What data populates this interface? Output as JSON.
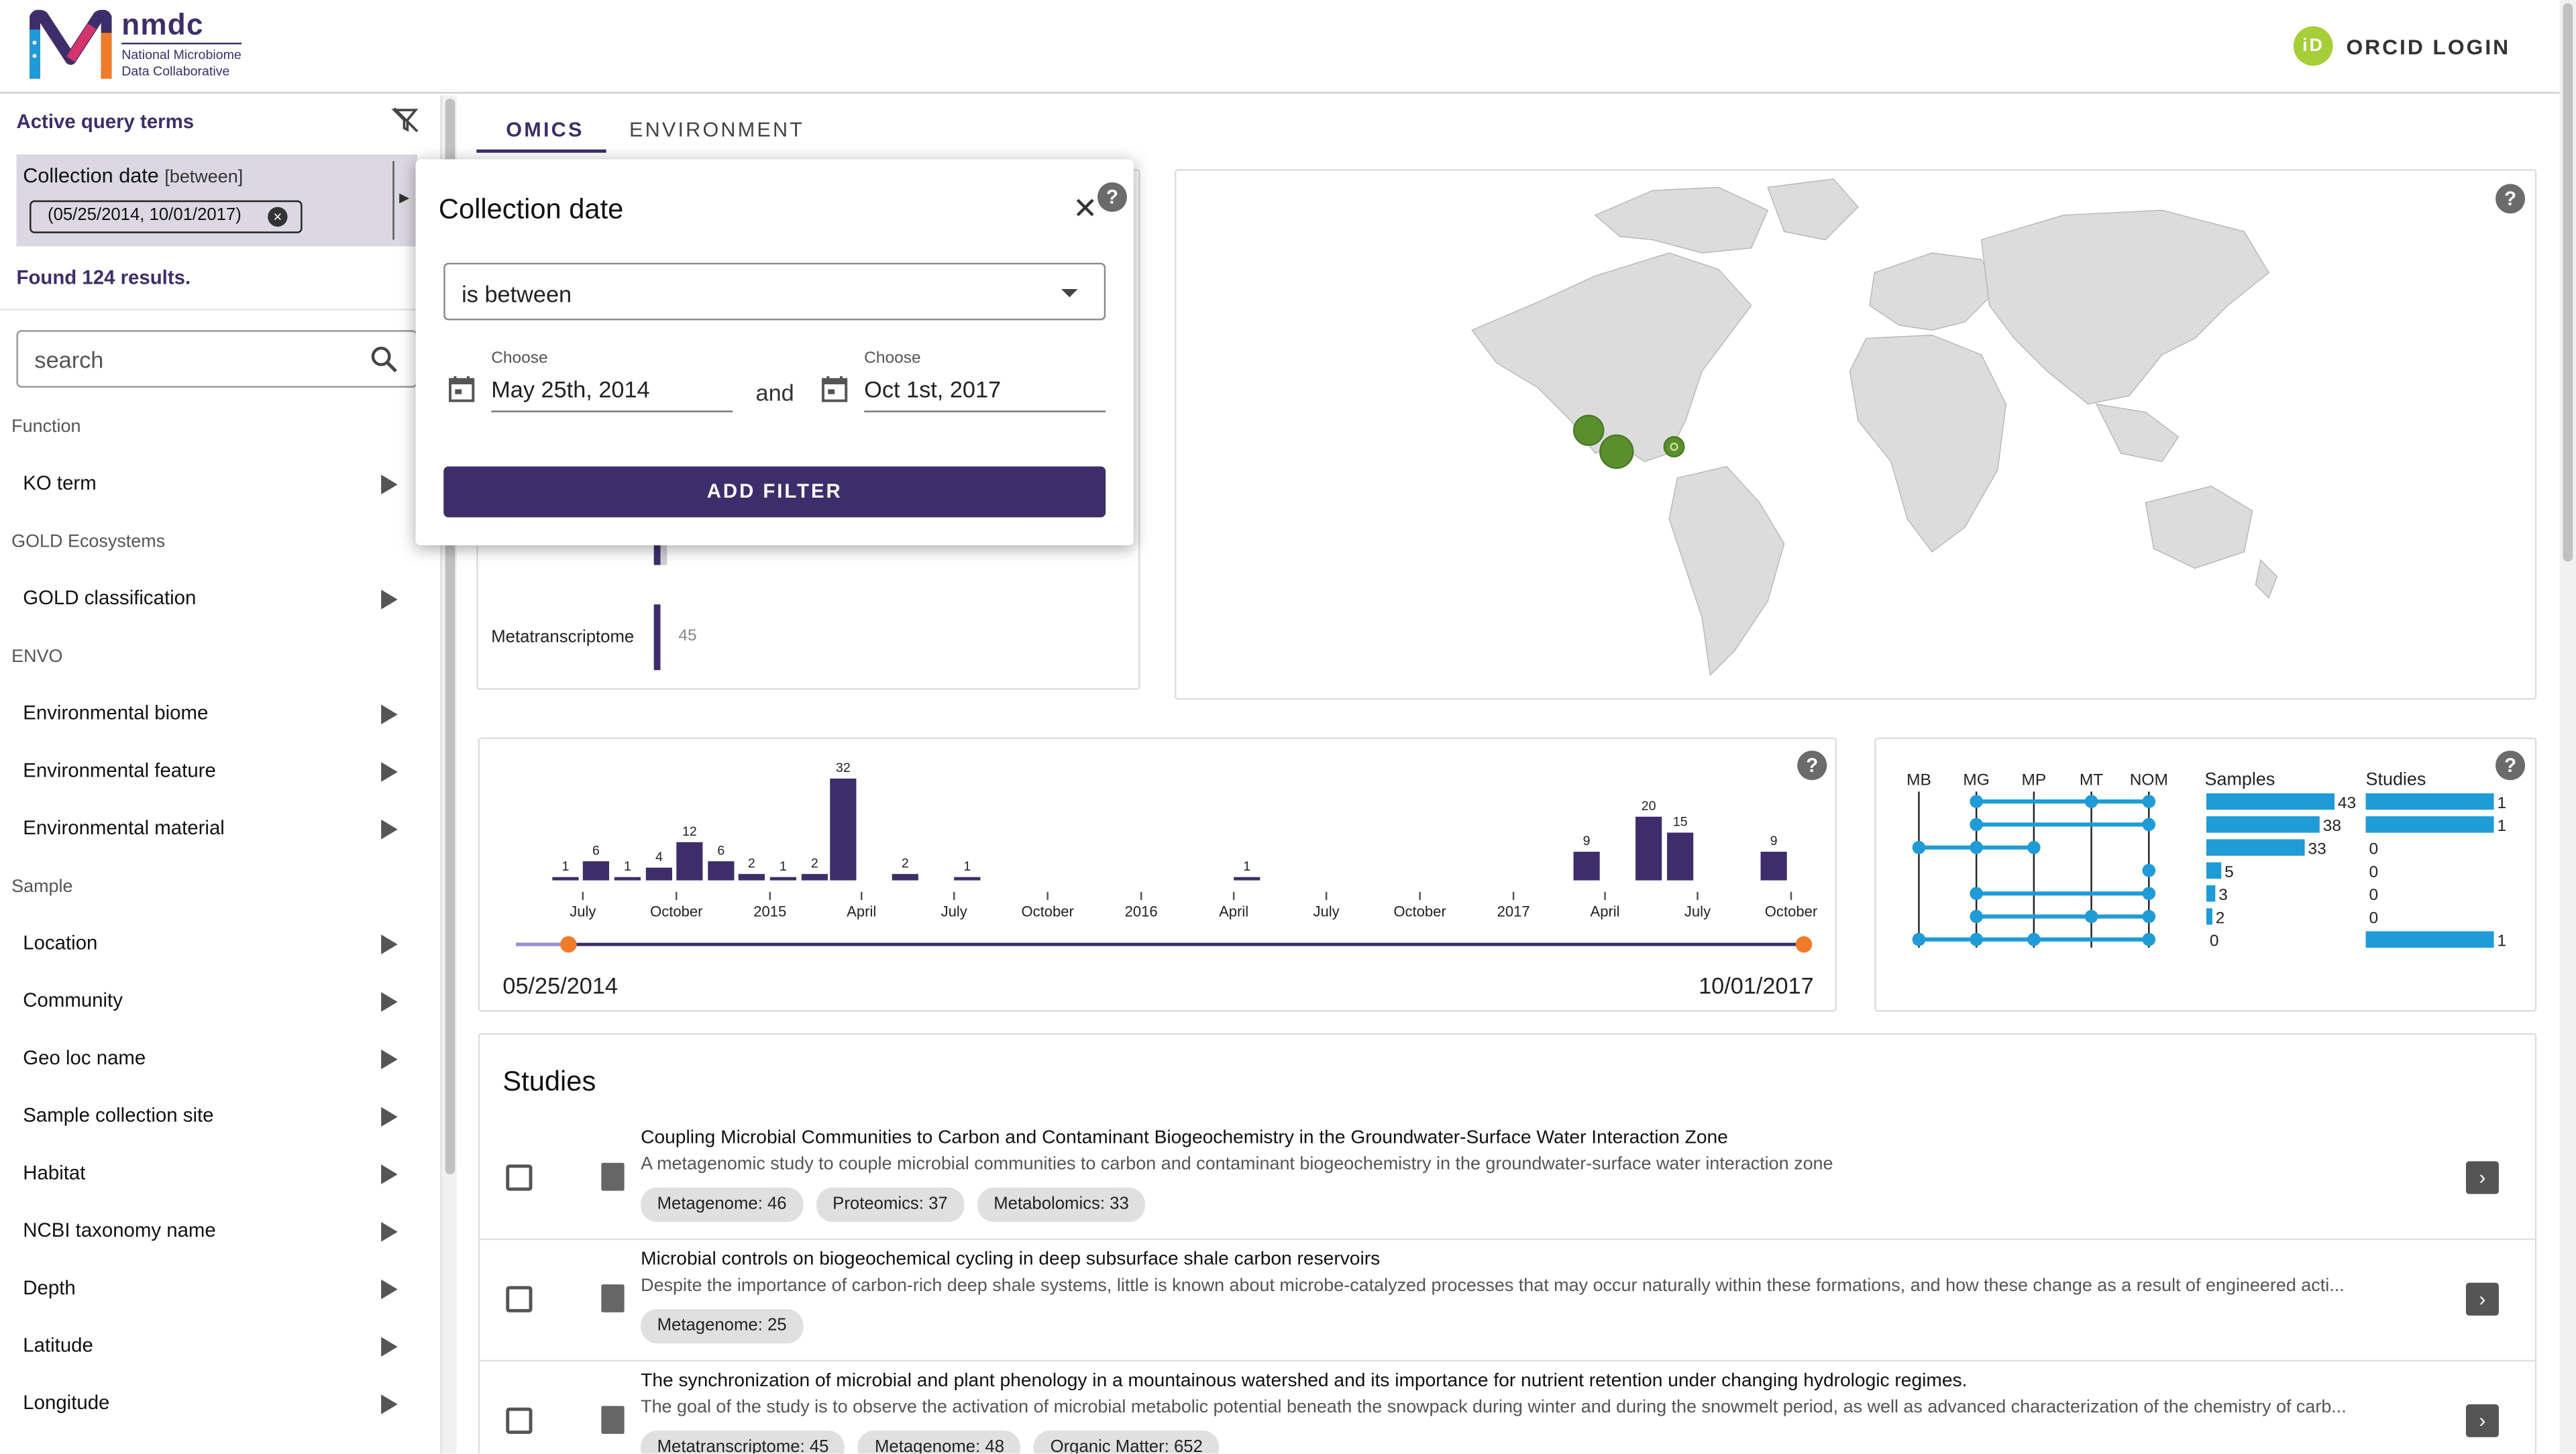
{
  "header": {
    "brand": "nmdc",
    "subtitle_line1": "National Microbiome",
    "subtitle_line2": "Data Collaborative",
    "orcid_badge": "iD",
    "orcid_label": "ORCID LOGIN"
  },
  "sidebar": {
    "active_query_title": "Active query terms",
    "query": {
      "field": "Collection date",
      "op": "[between]",
      "value": "(05/25/2014, 10/01/2017)"
    },
    "found": "Found 124 results.",
    "search_placeholder": "search",
    "groups": [
      {
        "label": "Function",
        "items": [
          "KO term"
        ]
      },
      {
        "label": "GOLD Ecosystems",
        "items": [
          "GOLD classification"
        ]
      },
      {
        "label": "ENVO",
        "items": [
          "Environmental biome",
          "Environmental feature",
          "Environmental material"
        ]
      },
      {
        "label": "Sample",
        "items": [
          "Location",
          "Community",
          "Geo loc name",
          "Sample collection site",
          "Habitat",
          "NCBI taxonomy name",
          "Depth",
          "Latitude",
          "Longitude"
        ]
      }
    ]
  },
  "tabs": [
    "OMICS",
    "ENVIRONMENT"
  ],
  "popup": {
    "title": "Collection date",
    "close": "✕",
    "operator": "is between",
    "choose_label": "Choose",
    "from": "May 25th, 2014",
    "and": "and",
    "to": "Oct 1st, 2017",
    "button": "ADD FILTER"
  },
  "omics_partial": {
    "label": "Metatranscriptome",
    "value": "45"
  },
  "timeline": {
    "start_date": "05/25/2014",
    "end_date": "10/01/2017",
    "tick_labels": [
      "July",
      "October",
      "2015",
      "April",
      "July",
      "October",
      "2016",
      "April",
      "July",
      "October",
      "2017",
      "April",
      "July",
      "October"
    ]
  },
  "upset": {
    "columns": [
      "MB",
      "MG",
      "MP",
      "MT",
      "NOM"
    ],
    "samples_label": "Samples",
    "studies_label": "Studies",
    "samples": [
      43,
      38,
      33,
      5,
      3,
      2,
      0
    ],
    "studies": [
      1,
      1,
      0,
      0,
      0,
      0,
      1
    ]
  },
  "studies": {
    "title": "Studies",
    "items": [
      {
        "title": "Coupling Microbial Communities to Carbon and Contaminant Biogeochemistry in the Groundwater-Surface Water Interaction Zone",
        "desc": "A metagenomic study to couple microbial communities to carbon and contaminant biogeochemistry in the groundwater-surface water interaction zone",
        "chips": [
          "Metagenome: 46",
          "Proteomics: 37",
          "Metabolomics: 33"
        ]
      },
      {
        "title": "Microbial controls on biogeochemical cycling in deep subsurface shale carbon reservoirs",
        "desc": "Despite the importance of carbon-rich deep shale systems, little is known about microbe-catalyzed processes that may occur naturally within these formations, and how these change as a result of engineered acti...",
        "chips": [
          "Metagenome: 25"
        ]
      },
      {
        "title": "The synchronization of microbial and plant phenology in a mountainous watershed and its importance for nutrient retention under changing hydrologic regimes.",
        "desc": "The goal of the study is to observe the activation of microbial metabolic potential beneath the snowpack during winter and during the snowmelt period, as well as advanced characterization of the chemistry of carb...",
        "chips": [
          "Metatranscriptome: 45",
          "Metagenome: 48",
          "Organic Matter: 652"
        ]
      }
    ]
  },
  "chart_data": {
    "type": "bar",
    "title": "",
    "xlabel": "",
    "ylabel": "",
    "x_range": [
      "2014-05-25",
      "2017-10-01"
    ],
    "series": [
      {
        "values": [
          {
            "x": "2014-06",
            "y": 1
          },
          {
            "x": "2014-07",
            "y": 6
          },
          {
            "x": "2014-08",
            "y": 1
          },
          {
            "x": "2014-09",
            "y": 4
          },
          {
            "x": "2014-10",
            "y": 12
          },
          {
            "x": "2014-11",
            "y": 6
          },
          {
            "x": "2014-12",
            "y": 2
          },
          {
            "x": "2015-01",
            "y": 1
          },
          {
            "x": "2015-02",
            "y": 2
          },
          {
            "x": "2015-03",
            "y": 32
          },
          {
            "x": "2015-05",
            "y": 2
          },
          {
            "x": "2015-07",
            "y": 1
          },
          {
            "x": "2016-04",
            "y": 1
          },
          {
            "x": "2017-03",
            "y": 9
          },
          {
            "x": "2017-05",
            "y": 20
          },
          {
            "x": "2017-06",
            "y": 15
          },
          {
            "x": "2017-09",
            "y": 9
          }
        ]
      }
    ]
  },
  "map": {
    "markers": [
      {
        "lat": 39.0,
        "lon": -120.5,
        "size": "small"
      },
      {
        "lat": 36.0,
        "lon": -117.5,
        "size": "medium"
      },
      {
        "lat": 37.5,
        "lon": -84.0,
        "size": "small"
      }
    ]
  }
}
